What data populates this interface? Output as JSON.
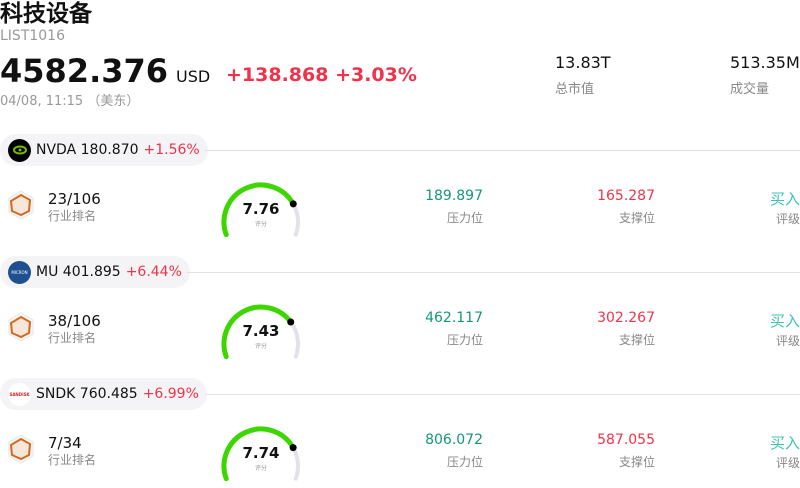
{
  "header": {
    "title": "科技设备",
    "code": "LIST1016",
    "price": "4582.376",
    "currency": "USD",
    "change": "+138.868 +3.03%",
    "time": "04/08, 11:15 （美东）"
  },
  "stats": [
    {
      "value": "13.83T",
      "label": "总市值"
    },
    {
      "value": "513.35M",
      "label": "成交量"
    }
  ],
  "colors": {
    "up": "#f0334a",
    "resistance": "#15967a",
    "rating": "#3cc4b4",
    "gauge": "#3dd600"
  },
  "stocks": [
    {
      "ticker": "NVDA",
      "price": "180.870",
      "change": "+1.56%",
      "logo": "nvidia-logo",
      "rank": "23/106",
      "rank_label": "行业排名",
      "score": 7.76,
      "score_text": "7.76",
      "score_label": "评分",
      "resistance": "189.897",
      "resistance_label": "压力位",
      "support": "165.287",
      "support_label": "支撑位",
      "rating": "买入",
      "rating_label": "评级"
    },
    {
      "ticker": "MU",
      "price": "401.895",
      "change": "+6.44%",
      "logo": "micron-logo",
      "rank": "38/106",
      "rank_label": "行业排名",
      "score": 7.43,
      "score_text": "7.43",
      "score_label": "评分",
      "resistance": "462.117",
      "resistance_label": "压力位",
      "support": "302.267",
      "support_label": "支撑位",
      "rating": "买入",
      "rating_label": "评级"
    },
    {
      "ticker": "SNDK",
      "price": "760.485",
      "change": "+6.99%",
      "logo": "sandisk-logo",
      "rank": "7/34",
      "rank_label": "行业排名",
      "score": 7.74,
      "score_text": "7.74",
      "score_label": "评分",
      "resistance": "806.072",
      "resistance_label": "压力位",
      "support": "587.055",
      "support_label": "支撑位",
      "rating": "买入",
      "rating_label": "评级"
    }
  ]
}
